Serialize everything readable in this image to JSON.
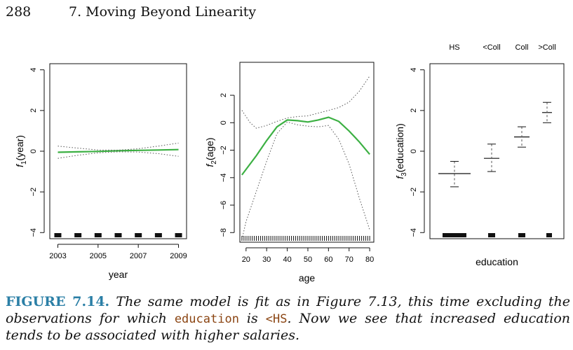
{
  "header": {
    "page_number": "288",
    "chapter_title": "7. Moving Beyond Linearity"
  },
  "caption": {
    "label": "FIGURE 7.14.",
    "text_1": " The same model is fit as in Figure 7.13, this time excluding the observations for which ",
    "code_1": "education",
    "text_2": " is ",
    "code_2": "<HS",
    "text_3": ". Now we see that increased education tends to be associated with higher salaries."
  },
  "colors": {
    "fit": "#3cb043",
    "ci": "#555555",
    "axis": "#111111",
    "caption_label": "#2b7fa6",
    "code": "#8b4513"
  },
  "chart_data": [
    {
      "type": "line",
      "xlabel": "year",
      "ylabel": "f1(year)",
      "xlim": [
        2002.6,
        2009.4
      ],
      "ylim": [
        -4.3,
        4.3
      ],
      "xticks": [
        2003,
        2005,
        2007,
        2009
      ],
      "yticks": [
        -4,
        -2,
        0,
        2,
        4
      ],
      "series": [
        {
          "role": "fit",
          "x": [
            2003,
            2004,
            2005,
            2006,
            2007,
            2008,
            2009
          ],
          "y": [
            -0.05,
            -0.03,
            -0.01,
            0.02,
            0.04,
            0.06,
            0.08
          ]
        },
        {
          "role": "upper",
          "x": [
            2003,
            2004,
            2005,
            2006,
            2007,
            2008,
            2009
          ],
          "y": [
            0.25,
            0.15,
            0.06,
            0.05,
            0.12,
            0.25,
            0.4
          ]
        },
        {
          "role": "lower",
          "x": [
            2003,
            2004,
            2005,
            2006,
            2007,
            2008,
            2009
          ],
          "y": [
            -0.35,
            -0.2,
            -0.08,
            -0.03,
            -0.04,
            -0.12,
            -0.25
          ]
        }
      ],
      "rug": [
        2003,
        2004,
        2005,
        2006,
        2007,
        2008,
        2009
      ]
    },
    {
      "type": "line",
      "xlabel": "age",
      "ylabel": "f2(age)",
      "xlim": [
        17,
        82
      ],
      "ylim": [
        -8.7,
        4.4
      ],
      "xticks": [
        20,
        30,
        40,
        50,
        60,
        70,
        80
      ],
      "yticks": [
        -8,
        -6,
        -4,
        -2,
        0,
        2
      ],
      "series": [
        {
          "role": "fit",
          "x": [
            18,
            25,
            30,
            35,
            40,
            45,
            50,
            55,
            60,
            65,
            70,
            75,
            80
          ],
          "y": [
            -3.8,
            -2.4,
            -1.3,
            -0.3,
            0.2,
            0.15,
            0.05,
            0.2,
            0.4,
            0.1,
            -0.6,
            -1.4,
            -2.3
          ]
        },
        {
          "role": "upper",
          "x": [
            18,
            22,
            25,
            30,
            35,
            40,
            45,
            50,
            55,
            60,
            65,
            70,
            75,
            80
          ],
          "y": [
            0.9,
            0.0,
            -0.4,
            -0.2,
            0.1,
            0.35,
            0.45,
            0.5,
            0.7,
            0.9,
            1.1,
            1.5,
            2.3,
            3.4
          ]
        },
        {
          "role": "lower",
          "x": [
            18,
            20,
            25,
            30,
            35,
            40,
            45,
            50,
            55,
            60,
            65,
            70,
            75,
            80
          ],
          "y": [
            -8.5,
            -7.2,
            -5.0,
            -2.8,
            -0.8,
            0.05,
            -0.15,
            -0.25,
            -0.3,
            -0.2,
            -1.2,
            -3.0,
            -5.5,
            -7.8
          ]
        }
      ],
      "rug_range": [
        18,
        80
      ]
    },
    {
      "type": "bar",
      "xlabel": "education",
      "ylabel": "f3(education)",
      "categories": [
        "HS",
        "<Coll",
        "Coll",
        ">Coll"
      ],
      "values": [
        -1.1,
        -0.35,
        0.7,
        1.9
      ],
      "upper": [
        -0.5,
        0.35,
        1.2,
        2.4
      ],
      "lower": [
        -1.75,
        -1.0,
        0.2,
        1.4
      ],
      "ylim": [
        -4.3,
        4.3
      ],
      "yticks": [
        -4,
        -2,
        0,
        2,
        4
      ]
    }
  ]
}
